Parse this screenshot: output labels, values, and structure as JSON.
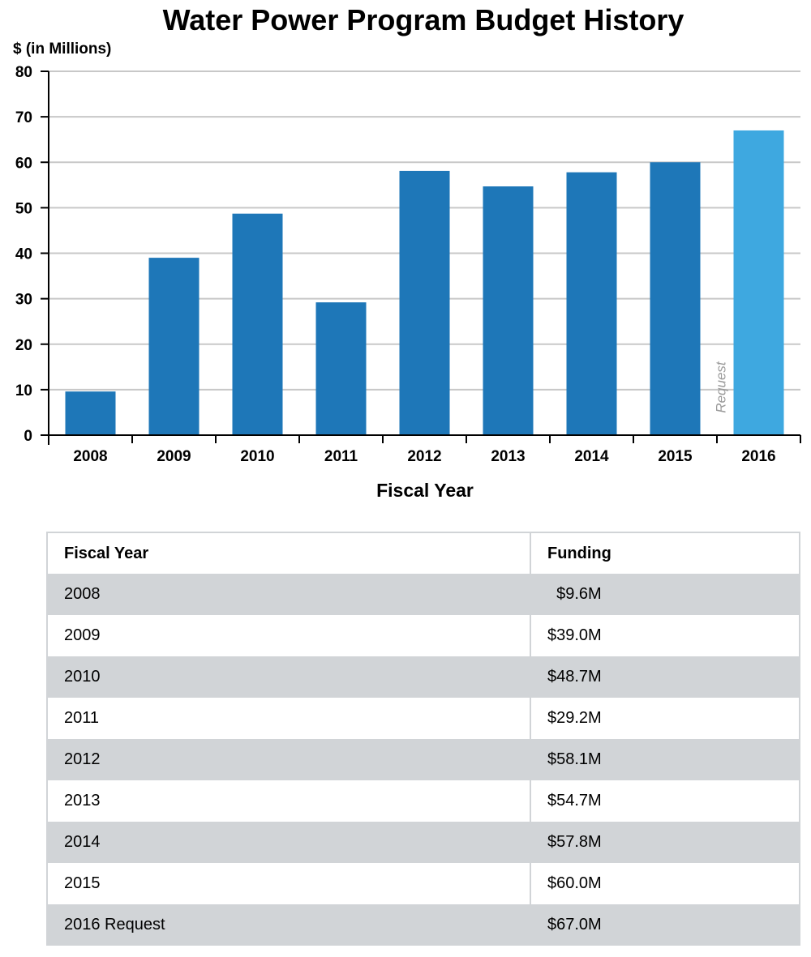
{
  "chart_data": {
    "type": "bar",
    "title": "Water Power Program Budget History",
    "ylabel": "$ (in Millions)",
    "xlabel": "Fiscal Year",
    "categories": [
      "2008",
      "2009",
      "2010",
      "2011",
      "2012",
      "2013",
      "2014",
      "2015",
      "2016"
    ],
    "values": [
      9.6,
      39.0,
      48.7,
      29.2,
      58.1,
      54.7,
      57.8,
      60.0,
      67.0
    ],
    "yticks": [
      "0",
      "10",
      "20",
      "30",
      "40",
      "50",
      "60",
      "70",
      "80"
    ],
    "ylim": [
      0,
      80
    ],
    "grid": true,
    "annotations": [
      {
        "category": "2016",
        "text": "Request"
      }
    ],
    "colors": {
      "bar": "#1e77b8",
      "request_bar": "#3ea8e0",
      "grid": "#c8c8c8",
      "axis": "#000000"
    }
  },
  "table": {
    "headers": [
      "Fiscal Year",
      "Funding"
    ],
    "rows": [
      {
        "year": "2008",
        "funding": "  $9.6M"
      },
      {
        "year": "2009",
        "funding": "$39.0M"
      },
      {
        "year": "2010",
        "funding": "$48.7M"
      },
      {
        "year": "2011",
        "funding": "$29.2M"
      },
      {
        "year": "2012",
        "funding": "$58.1M"
      },
      {
        "year": "2013",
        "funding": "$54.7M"
      },
      {
        "year": "2014",
        "funding": "$57.8M"
      },
      {
        "year": "2015",
        "funding": "$60.0M"
      },
      {
        "year": "2016 Request",
        "funding": "$67.0M"
      }
    ]
  }
}
